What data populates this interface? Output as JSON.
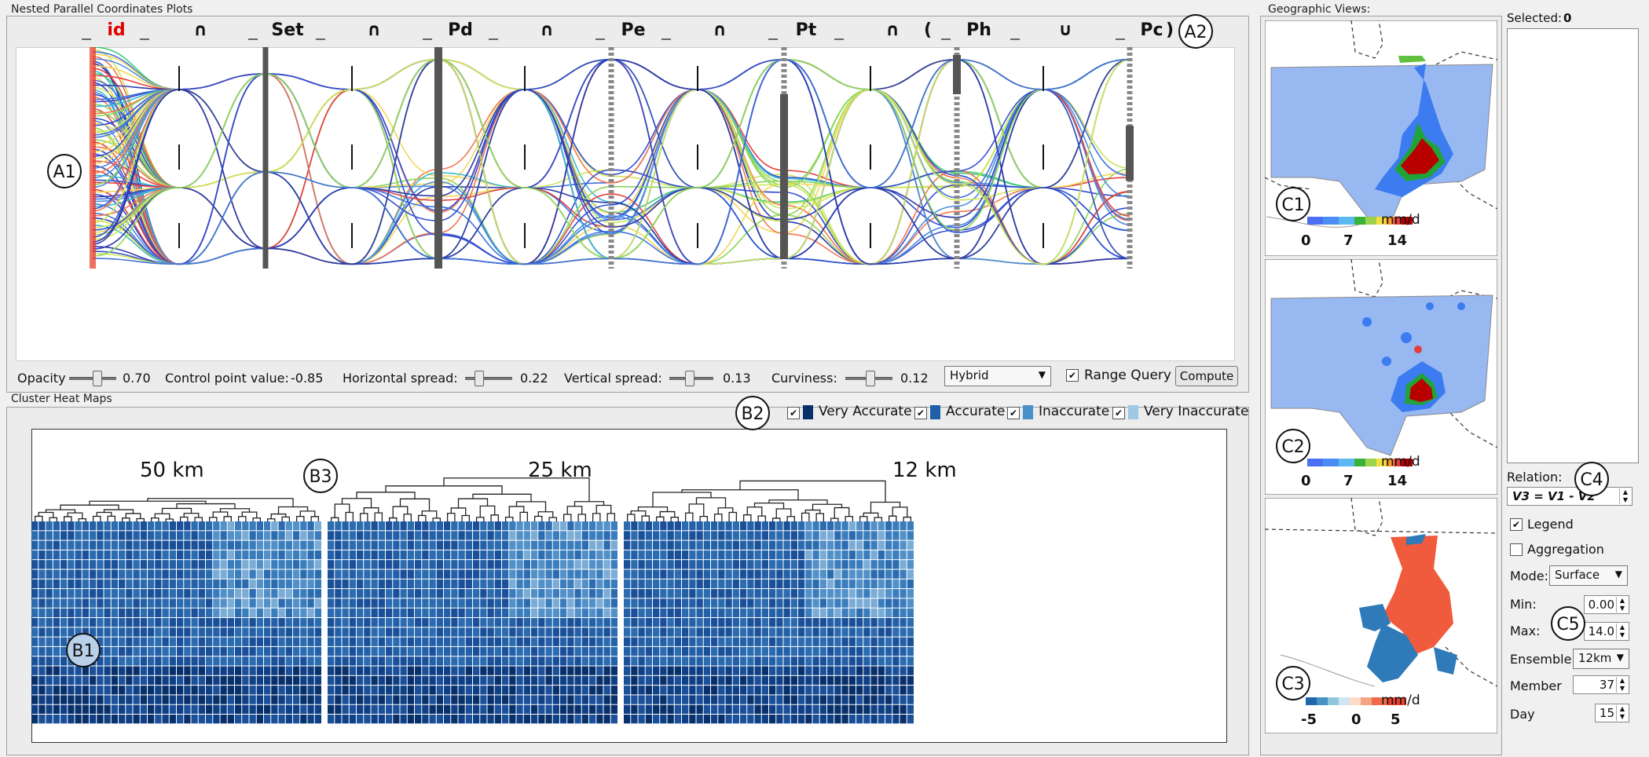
{
  "pcp": {
    "title": "Nested Parallel Coordinates Plots",
    "axes": [
      {
        "id": "id",
        "label": "id",
        "color": "#e00000"
      },
      {
        "id": "op1",
        "label": "∩",
        "color": "#111"
      },
      {
        "id": "set",
        "label": "Set",
        "color": "#111"
      },
      {
        "id": "op2",
        "label": "∩",
        "color": "#111"
      },
      {
        "id": "pd",
        "label": "Pd",
        "color": "#111"
      },
      {
        "id": "op3",
        "label": "∩",
        "color": "#111"
      },
      {
        "id": "pe",
        "label": "Pe",
        "color": "#111"
      },
      {
        "id": "op4",
        "label": "∩",
        "color": "#111"
      },
      {
        "id": "pt",
        "label": "Pt",
        "color": "#111"
      },
      {
        "id": "op5",
        "label": "∩",
        "color": "#111"
      },
      {
        "id": "ph",
        "label": "Ph",
        "color": "#111"
      },
      {
        "id": "op6",
        "label": "∪",
        "color": "#111"
      },
      {
        "id": "pc",
        "label": "Pc",
        "color": "#111"
      }
    ],
    "paren_open": "(",
    "paren_close": ")",
    "controls": {
      "opacity_label": "Opacity",
      "opacity_value": "0.70",
      "control_point_label": "Control point value:",
      "control_point_value": "-0.85",
      "hspread_label": "Horizontal spread:",
      "hspread_value": "0.22",
      "vspread_label": "Vertical spread:",
      "vspread_value": "0.13",
      "curviness_label": "Curviness:",
      "curviness_value": "0.12",
      "mode_selected": "Hybrid",
      "range_query_label": "Range Query",
      "range_query_checked": true,
      "compute_label": "Compute"
    }
  },
  "heatmaps": {
    "title": "Cluster Heat Maps",
    "legend": [
      {
        "label": "Very Accurate",
        "color": "#08306b"
      },
      {
        "label": "Accurate",
        "color": "#1e5fa8"
      },
      {
        "label": "Inaccurate",
        "color": "#4a90c8"
      },
      {
        "label": "Very Inaccurate",
        "color": "#9ec8e4"
      }
    ],
    "groups": [
      {
        "label": "50 km"
      },
      {
        "label": "25 km"
      },
      {
        "label": "12 km"
      }
    ]
  },
  "geo": {
    "title": "Geographic Views:",
    "maps": [
      {
        "id": "c1",
        "unit": "mm/d",
        "ticks": [
          "0",
          "7",
          "14"
        ]
      },
      {
        "id": "c2",
        "unit": "mm/d",
        "ticks": [
          "0",
          "7",
          "14"
        ]
      },
      {
        "id": "c3",
        "unit": "mm/d",
        "ticks": [
          "-5",
          "0",
          "5"
        ]
      }
    ]
  },
  "side": {
    "selected_label": "Selected:",
    "selected_count": "0",
    "relation_label": "Relation:",
    "relation_value": "V3 = V1 - V2",
    "legend_label": "Legend",
    "legend_checked": true,
    "aggregation_label": "Aggregation",
    "aggregation_checked": false,
    "mode_label": "Mode:",
    "mode_value": "Surface",
    "min_label": "Min:",
    "min_value": "0.00",
    "max_label": "Max:",
    "max_value": "14.0",
    "ensemble_label": "Ensemble:",
    "ensemble_value": "12km",
    "member_label": "Member",
    "member_value": "37",
    "day_label": "Day",
    "day_value": "15"
  },
  "callouts": {
    "a1": "A1",
    "a2": "A2",
    "b1": "B1",
    "b2": "B2",
    "b3": "B3",
    "c1": "C1",
    "c2": "C2",
    "c3": "C3",
    "c4": "C4",
    "c5": "C5"
  }
}
